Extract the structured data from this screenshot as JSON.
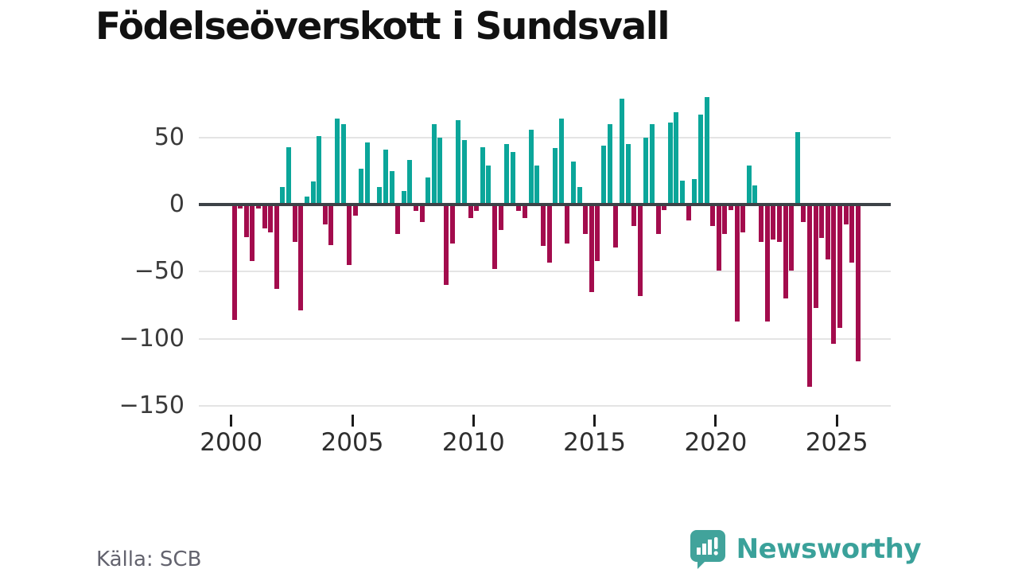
{
  "title": "Födelseöverskott i Sundsvall",
  "source": "Källa: SCB",
  "branding": {
    "name": "Newsworthy"
  },
  "chart_data": {
    "type": "bar",
    "title": "Födelseöverskott i Sundsvall",
    "frequency": "quarterly",
    "x_start": "2000Q1",
    "x_end": "2025Q4",
    "ylim": [
      -150,
      85
    ],
    "grid": "horizontal",
    "colors": {
      "positive": "#0ba69a",
      "negative": "#a30c4d",
      "zero_axis": "#3d4247"
    },
    "y_ticks": [
      {
        "v": 50,
        "label": "50"
      },
      {
        "v": 0,
        "label": "0"
      },
      {
        "v": -50,
        "label": "−50"
      },
      {
        "v": -100,
        "label": "−100"
      },
      {
        "v": -150,
        "label": "−150"
      }
    ],
    "x_ticks": [
      {
        "year": 2000,
        "label": "2000"
      },
      {
        "year": 2005,
        "label": "2005"
      },
      {
        "year": 2010,
        "label": "2010"
      },
      {
        "year": 2015,
        "label": "2015"
      },
      {
        "year": 2020,
        "label": "2020"
      },
      {
        "year": 2025,
        "label": "2025"
      }
    ],
    "values": [
      -86,
      -3,
      -24,
      -42,
      -3,
      -18,
      -21,
      -63,
      13,
      43,
      -28,
      -79,
      6,
      17,
      51,
      -15,
      -30,
      64,
      60,
      -45,
      -8,
      27,
      46,
      0,
      13,
      41,
      25,
      -22,
      10,
      33,
      -5,
      -13,
      20,
      60,
      50,
      -60,
      -29,
      63,
      48,
      -10,
      -5,
      43,
      29,
      -48,
      -19,
      45,
      39,
      -5,
      -10,
      56,
      29,
      -31,
      -43,
      42,
      64,
      -29,
      32,
      13,
      -22,
      -65,
      -42,
      44,
      60,
      -32,
      79,
      45,
      -16,
      -68,
      50,
      60,
      -22,
      -4,
      61,
      69,
      18,
      -12,
      19,
      67,
      80,
      -16,
      -49,
      -22,
      -4,
      -87,
      -21,
      29,
      14,
      -28,
      -87,
      -26,
      -28,
      -70,
      -49,
      54,
      -13,
      -136,
      -77,
      -25,
      -41,
      -104,
      -92,
      -15,
      -43,
      -117
    ]
  }
}
